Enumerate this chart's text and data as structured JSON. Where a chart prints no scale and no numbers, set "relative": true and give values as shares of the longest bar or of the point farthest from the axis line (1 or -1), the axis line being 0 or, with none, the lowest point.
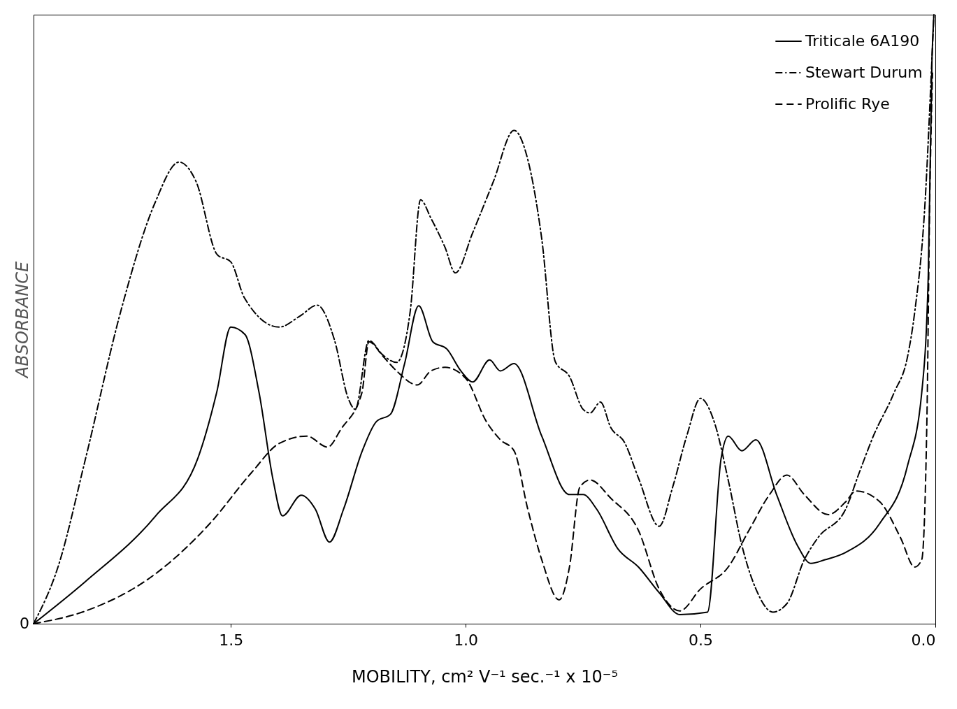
{
  "chart_data": {
    "type": "line",
    "relative": true,
    "xlabel": "MOBILITY, cm² V⁻¹ sec.⁻¹ x 10⁻⁵",
    "ylabel": "ABSORBANCE",
    "xlim": [
      1.92,
      0.0
    ],
    "xticks": [
      {
        "value": 1.5,
        "label": "1.5"
      },
      {
        "value": 1.0,
        "label": "1.0"
      },
      {
        "value": 0.5,
        "label": "0.5"
      },
      {
        "value": 0.0,
        "label": "0.0"
      }
    ],
    "legend": "top right",
    "grid": false,
    "annotations": [
      "0"
    ],
    "series": [
      {
        "name": "Triticale 6A190",
        "color": "#000000",
        "line_style": "solid",
        "x": [
          1.92,
          1.81,
          1.66,
          1.57,
          1.53,
          1.5,
          1.47,
          1.44,
          1.41,
          1.39,
          1.35,
          1.32,
          1.29,
          1.26,
          1.22,
          1.19,
          1.16,
          1.13,
          1.1,
          1.07,
          1.04,
          1.01,
          0.985,
          0.949,
          0.926,
          0.897,
          0.838,
          0.779,
          0.75,
          0.721,
          0.676,
          0.632,
          0.588,
          0.544,
          0.485,
          0.456,
          0.441,
          0.412,
          0.382,
          0.338,
          0.294,
          0.265,
          0.235,
          0.191,
          0.118,
          0.059,
          0.029,
          0.015,
          0.007,
          0.003
        ],
        "values": [
          0.0,
          0.069,
          0.177,
          0.272,
          0.38,
          0.487,
          0.475,
          0.38,
          0.236,
          0.177,
          0.211,
          0.188,
          0.134,
          0.188,
          0.284,
          0.332,
          0.344,
          0.427,
          0.522,
          0.463,
          0.451,
          0.415,
          0.397,
          0.433,
          0.415,
          0.427,
          0.308,
          0.212,
          0.212,
          0.188,
          0.123,
          0.093,
          0.051,
          0.015,
          0.019,
          0.272,
          0.308,
          0.284,
          0.302,
          0.212,
          0.129,
          0.099,
          0.105,
          0.117,
          0.165,
          0.26,
          0.379,
          0.573,
          0.931,
          1.0
        ]
      },
      {
        "name": "Stewart Durum",
        "color": "#000000",
        "line_style": "dashdot",
        "x": [
          1.92,
          1.868,
          1.809,
          1.735,
          1.662,
          1.61,
          1.574,
          1.529,
          1.5,
          1.471,
          1.397,
          1.353,
          1.316,
          1.279,
          1.25,
          1.235,
          1.206,
          1.176,
          1.147,
          1.118,
          1.096,
          1.074,
          1.044,
          1.022,
          0.985,
          0.941,
          0.897,
          0.868,
          0.838,
          0.809,
          0.779,
          0.75,
          0.735,
          0.713,
          0.691,
          0.662,
          0.632,
          0.588,
          0.559,
          0.529,
          0.5,
          0.471,
          0.441,
          0.412,
          0.382,
          0.346,
          0.316,
          0.279,
          0.25,
          0.191,
          0.162,
          0.132,
          0.088,
          0.059,
          0.044,
          0.022,
          0.007,
          0.003
        ],
        "values": [
          0.0,
          0.093,
          0.272,
          0.511,
          0.69,
          0.758,
          0.726,
          0.606,
          0.594,
          0.535,
          0.487,
          0.505,
          0.523,
          0.465,
          0.37,
          0.352,
          0.465,
          0.441,
          0.429,
          0.513,
          0.696,
          0.666,
          0.618,
          0.576,
          0.642,
          0.726,
          0.81,
          0.763,
          0.632,
          0.43,
          0.406,
          0.352,
          0.346,
          0.364,
          0.322,
          0.298,
          0.239,
          0.16,
          0.225,
          0.309,
          0.37,
          0.332,
          0.236,
          0.129,
          0.057,
          0.019,
          0.033,
          0.105,
          0.141,
          0.188,
          0.248,
          0.308,
          0.379,
          0.439,
          0.511,
          0.69,
          0.931,
          1.0
        ]
      },
      {
        "name": "Prolific Rye",
        "color": "#000000",
        "line_style": "dashed",
        "x": [
          1.92,
          1.809,
          1.662,
          1.544,
          1.456,
          1.397,
          1.338,
          1.294,
          1.265,
          1.221,
          1.206,
          1.176,
          1.147,
          1.103,
          1.074,
          1.044,
          1.0,
          0.956,
          0.926,
          0.897,
          0.868,
          0.838,
          0.801,
          0.779,
          0.757,
          0.735,
          0.691,
          0.632,
          0.588,
          0.544,
          0.5,
          0.441,
          0.397,
          0.353,
          0.316,
          0.279,
          0.228,
          0.191,
          0.169,
          0.118,
          0.074,
          0.044,
          0.029,
          0.018,
          0.012,
          0.006
        ],
        "values": [
          0.0,
          0.021,
          0.081,
          0.165,
          0.248,
          0.296,
          0.308,
          0.29,
          0.32,
          0.379,
          0.463,
          0.439,
          0.415,
          0.392,
          0.415,
          0.421,
          0.403,
          0.332,
          0.302,
          0.284,
          0.189,
          0.105,
          0.039,
          0.093,
          0.224,
          0.236,
          0.206,
          0.153,
          0.057,
          0.021,
          0.057,
          0.093,
          0.153,
          0.212,
          0.244,
          0.212,
          0.179,
          0.2,
          0.218,
          0.2,
          0.141,
          0.093,
          0.105,
          0.332,
          0.69,
          0.904
        ]
      }
    ]
  }
}
